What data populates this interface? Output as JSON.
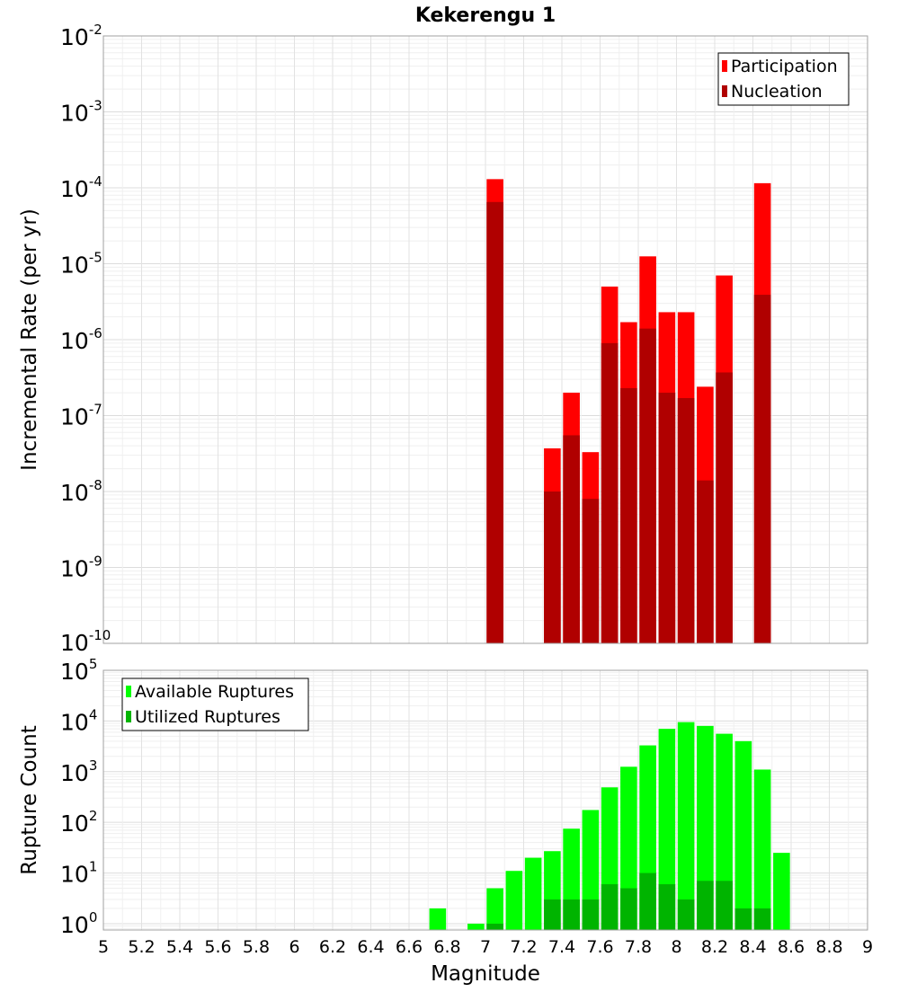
{
  "chart_data": [
    {
      "type": "bar",
      "title": "Kekerengu 1",
      "xlabel": "",
      "ylabel": "Incremental Rate (per yr)",
      "y_scale": "log",
      "xlim": [
        5,
        9
      ],
      "ylim": [
        1e-10,
        0.01
      ],
      "y_ticks": [
        "10^-10",
        "10^-9",
        "10^-8",
        "10^-7",
        "10^-6",
        "10^-5",
        "10^-4",
        "10^-3",
        "10^-2"
      ],
      "grid": true,
      "bar_mode": "overlay",
      "legend": {
        "position": "top-right",
        "entries": [
          "Participation",
          "Nucleation"
        ]
      },
      "colors": {
        "Participation": "#ff0000",
        "Nucleation": "#b00000"
      },
      "x": [
        7.05,
        7.35,
        7.45,
        7.55,
        7.65,
        7.75,
        7.85,
        7.95,
        8.05,
        8.15,
        8.25,
        8.45
      ],
      "series": [
        {
          "name": "Participation",
          "values": [
            0.00013,
            3.7e-08,
            2e-07,
            3.3e-08,
            5e-06,
            1.7e-06,
            1.25e-05,
            2.3e-06,
            2.3e-06,
            2.4e-07,
            7e-06,
            0.000115
          ]
        },
        {
          "name": "Nucleation",
          "values": [
            6.5e-05,
            1e-08,
            5.5e-08,
            8e-09,
            9e-07,
            2.3e-07,
            1.4e-06,
            2e-07,
            1.7e-07,
            1.4e-08,
            3.7e-07,
            3.9e-06
          ]
        }
      ]
    },
    {
      "type": "bar",
      "title": "",
      "xlabel": "Magnitude",
      "ylabel": "Rupture Count",
      "y_scale": "log",
      "xlim": [
        5,
        9
      ],
      "ylim": [
        0.75,
        100000.0
      ],
      "x_ticks": [
        "5",
        "5.2",
        "5.4",
        "5.6",
        "5.8",
        "6",
        "6.2",
        "6.4",
        "6.6",
        "6.8",
        "7",
        "7.2",
        "7.4",
        "7.6",
        "7.8",
        "8",
        "8.2",
        "8.4",
        "8.6",
        "8.8",
        "9"
      ],
      "y_ticks": [
        "10^0",
        "10^1",
        "10^2",
        "10^3",
        "10^4",
        "10^5"
      ],
      "grid": true,
      "bar_mode": "overlay",
      "legend": {
        "position": "top-left",
        "entries": [
          "Available Ruptures",
          "Utilized Ruptures"
        ]
      },
      "colors": {
        "Available Ruptures": "#00ff00",
        "Utilized Ruptures": "#00b400"
      },
      "x": [
        6.75,
        6.95,
        7.05,
        7.15,
        7.25,
        7.35,
        7.45,
        7.55,
        7.65,
        7.75,
        7.85,
        7.95,
        8.05,
        8.15,
        8.25,
        8.35,
        8.45,
        8.55
      ],
      "series": [
        {
          "name": "Available Ruptures",
          "values": [
            2,
            1,
            5,
            11,
            20,
            27,
            75,
            175,
            490,
            1250,
            3300,
            7000,
            9500,
            8000,
            5600,
            4000,
            1100,
            25
          ]
        },
        {
          "name": "Utilized Ruptures",
          "values": [
            null,
            null,
            1,
            null,
            null,
            3,
            3,
            3,
            6,
            5,
            10,
            6,
            3,
            7,
            7,
            2,
            2,
            null
          ]
        }
      ]
    }
  ]
}
